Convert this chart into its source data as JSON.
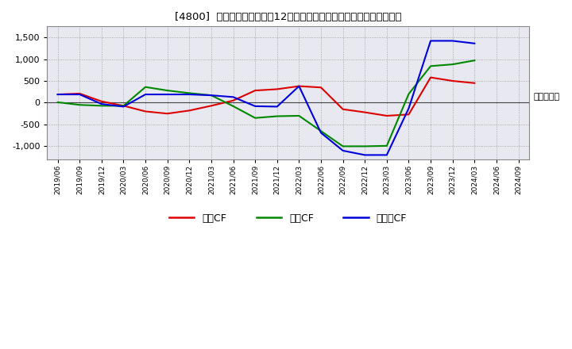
{
  "title": "[4800]  キャッシュフローの12か月移動合計の対前年同期増減額の推移",
  "ylabel": "（百万円）",
  "background_color": "#ffffff",
  "plot_bg_color": "#e8e8f0",
  "grid_color": "#999999",
  "ylim": [
    -1300,
    1750
  ],
  "yticks": [
    -1000,
    -500,
    0,
    500,
    1000,
    1500
  ],
  "ytick_labels": [
    "-1,000",
    "-500",
    "0",
    "500",
    "1,000",
    "1,500"
  ],
  "x_labels": [
    "2019/06",
    "2019/09",
    "2019/12",
    "2020/03",
    "2020/06",
    "2020/09",
    "2020/12",
    "2021/03",
    "2021/06",
    "2021/09",
    "2021/12",
    "2022/03",
    "2022/06",
    "2022/09",
    "2022/12",
    "2023/03",
    "2023/06",
    "2023/09",
    "2023/12",
    "2024/03",
    "2024/06",
    "2024/09"
  ],
  "series_order": [
    "営業CF",
    "投資CF",
    "フリーCF"
  ],
  "series": {
    "営業CF": {
      "color": "#dd0000",
      "data": [
        190,
        210,
        30,
        -70,
        -200,
        -250,
        -180,
        -70,
        50,
        280,
        310,
        380,
        350,
        -150,
        -220,
        -300,
        -270,
        580,
        500,
        450,
        null,
        null
      ]
    },
    "投資CF": {
      "color": "#008800",
      "data": [
        10,
        -50,
        -70,
        -70,
        360,
        280,
        220,
        170,
        -80,
        -350,
        -310,
        -300,
        -650,
        -1000,
        -1000,
        -990,
        200,
        840,
        880,
        970,
        null,
        null
      ]
    },
    "フリーCF": {
      "color": "#0000dd",
      "data": [
        190,
        190,
        -30,
        -90,
        190,
        190,
        190,
        170,
        130,
        -80,
        -90,
        380,
        -690,
        -1100,
        -1200,
        -1200,
        -130,
        1420,
        1420,
        1360,
        null,
        null
      ]
    }
  },
  "legend_labels": [
    "営業CF",
    "投資CF",
    "フリーCF"
  ],
  "legend_colors": [
    "#dd0000",
    "#008800",
    "#0000dd"
  ]
}
